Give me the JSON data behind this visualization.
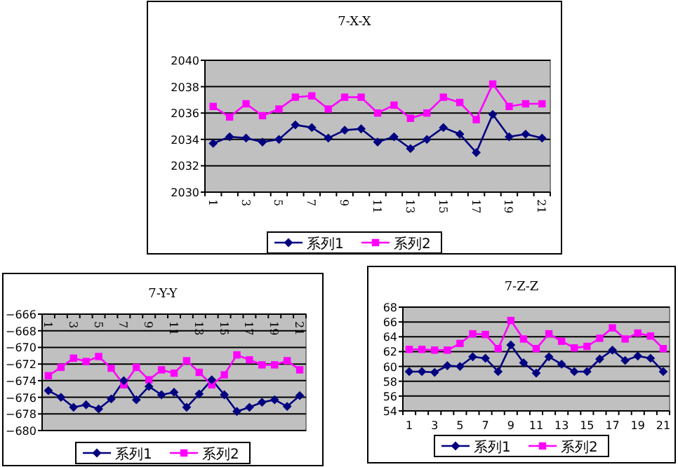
{
  "chart_data": [
    {
      "type": "line",
      "title": "7-X-X",
      "categories": [
        "1",
        null,
        "3",
        null,
        "5",
        null,
        "7",
        null,
        "9",
        null,
        "11",
        null,
        "13",
        null,
        "15",
        null,
        "17",
        null,
        "19",
        null,
        "21"
      ],
      "ylim": [
        2030,
        2040
      ],
      "yticks": [
        2030,
        2032,
        2034,
        2036,
        2038,
        2040
      ],
      "grid": "y",
      "legend": "bottom",
      "series": [
        {
          "name": "系列1",
          "color": "#000080",
          "marker": "diamond",
          "values": [
            2033.7,
            2034.2,
            2034.1,
            2033.8,
            2034.0,
            2035.1,
            2034.9,
            2034.1,
            2034.7,
            2034.8,
            2033.8,
            2034.2,
            2033.3,
            2034.0,
            2034.9,
            2034.4,
            2033.0,
            2035.9,
            2034.2,
            2034.4,
            2034.1
          ]
        },
        {
          "name": "系列2",
          "color": "#ff00ff",
          "marker": "square",
          "values": [
            2036.5,
            2035.7,
            2036.7,
            2035.8,
            2036.3,
            2037.2,
            2037.3,
            2036.3,
            2037.2,
            2037.2,
            2036.0,
            2036.6,
            2035.6,
            2036.0,
            2037.2,
            2036.8,
            2035.5,
            2038.2,
            2036.5,
            2036.7,
            2036.7
          ]
        }
      ]
    },
    {
      "type": "line",
      "title": "7-Y-Y",
      "categories": [
        "1",
        null,
        "3",
        null,
        "5",
        null,
        "7",
        null,
        "9",
        null,
        "11",
        null,
        "13",
        null,
        "15",
        null,
        "17",
        null,
        "19",
        null,
        "21"
      ],
      "ylim": [
        -680,
        -666
      ],
      "yticks": [
        {
          "value": -680,
          "label": "−680"
        },
        {
          "value": -678,
          "label": "−678"
        },
        {
          "value": -676,
          "label": "−676"
        },
        {
          "value": -674,
          "label": "−674"
        },
        {
          "value": -672,
          "label": "−672"
        },
        {
          "value": -670,
          "label": "−670"
        },
        {
          "value": -668,
          "label": "−668"
        },
        {
          "value": -666,
          "label": "−666"
        }
      ],
      "grid": "y",
      "legend": "bottom",
      "series": [
        {
          "name": "系列1",
          "color": "#000080",
          "marker": "diamond",
          "values": [
            -675.2,
            -676.0,
            -677.2,
            -676.9,
            -677.4,
            -676.2,
            -674.0,
            -676.3,
            -674.7,
            -675.7,
            -675.4,
            -677.2,
            -675.6,
            -673.9,
            -675.7,
            -677.7,
            -677.2,
            -676.6,
            -676.3,
            -677.1,
            -675.8
          ]
        },
        {
          "name": "系列2",
          "color": "#ff00ff",
          "marker": "square",
          "values": [
            -673.4,
            -672.4,
            -671.3,
            -671.7,
            -671.1,
            -672.5,
            -674.5,
            -672.4,
            -673.9,
            -672.7,
            -673.1,
            -671.6,
            -673.0,
            -674.5,
            -673.3,
            -670.9,
            -671.5,
            -672.1,
            -672.1,
            -671.6,
            -672.7
          ]
        }
      ]
    },
    {
      "type": "line",
      "title": "7-Z-Z",
      "categories": [
        "1",
        null,
        "3",
        null,
        "5",
        null,
        "7",
        null,
        "9",
        null,
        "11",
        null,
        "13",
        null,
        "15",
        null,
        "17",
        null,
        "19",
        null,
        "21"
      ],
      "ylim": [
        54,
        68
      ],
      "yticks": [
        54,
        56,
        58,
        60,
        62,
        64,
        66,
        68
      ],
      "grid": "y",
      "legend": "bottom",
      "series": [
        {
          "name": "系列1",
          "color": "#000080",
          "marker": "diamond",
          "values": [
            59.3,
            59.3,
            59.2,
            60.1,
            60.0,
            61.3,
            61.1,
            59.3,
            62.9,
            60.5,
            59.1,
            61.3,
            60.3,
            59.3,
            59.3,
            61.0,
            62.2,
            60.8,
            61.4,
            61.1,
            59.3
          ]
        },
        {
          "name": "系列2",
          "color": "#ff00ff",
          "marker": "square",
          "values": [
            62.3,
            62.3,
            62.2,
            62.2,
            63.1,
            64.4,
            64.3,
            62.4,
            66.2,
            63.7,
            62.4,
            64.4,
            63.4,
            62.5,
            62.7,
            63.8,
            65.2,
            63.7,
            64.5,
            64.1,
            62.4
          ]
        }
      ]
    }
  ]
}
